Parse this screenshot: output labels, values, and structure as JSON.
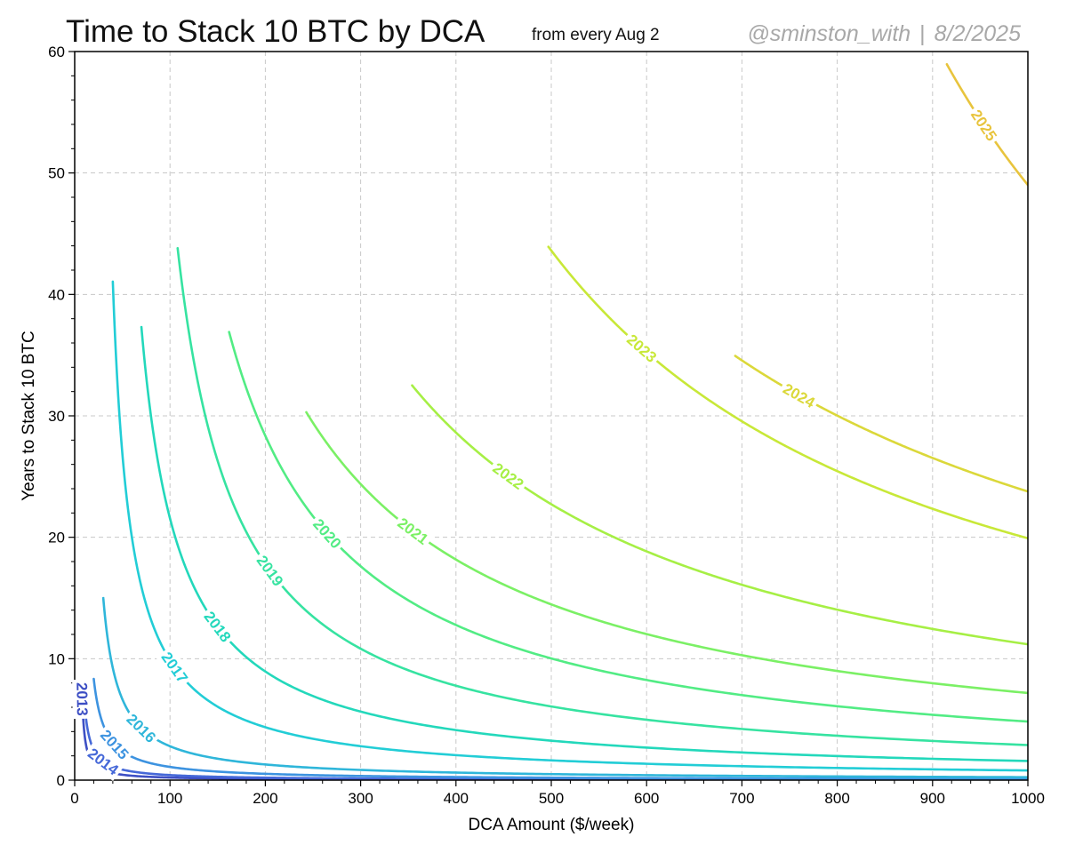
{
  "header": {
    "title": "Time to Stack 10 BTC by DCA",
    "subtitle": "from every Aug 2",
    "handle": "@sminston_with",
    "separator": "|",
    "date": "8/2/2025"
  },
  "colors": {
    "grid": "#c8c8c8",
    "axis": "#000000",
    "credit": "#a8a8a8"
  },
  "chart_data": {
    "type": "line",
    "title": "Time to Stack 10 BTC by DCA",
    "subtitle": "from every Aug 2",
    "xlabel": "DCA Amount ($/week)",
    "ylabel": "Years to Stack 10 BTC",
    "xlim": [
      0,
      1000
    ],
    "ylim": [
      0,
      60
    ],
    "xticks": [
      0,
      100,
      200,
      300,
      400,
      500,
      600,
      700,
      800,
      900,
      1000
    ],
    "yticks": [
      0,
      10,
      20,
      30,
      40,
      50,
      60
    ],
    "grid": true,
    "grid_style": "dashed",
    "legend": "none",
    "curve_form": "years = k / (dca - offset)",
    "series": [
      {
        "name": "2013",
        "k": 20,
        "offset": 5,
        "xstart": 8,
        "color": "#3d4fc4",
        "label_at_x": 8
      },
      {
        "name": "2014",
        "k": 40,
        "offset": 4,
        "xstart": 10,
        "color": "#4568d8",
        "label_at_x": 30
      },
      {
        "name": "2015",
        "k": 100,
        "offset": 8,
        "xstart": 20,
        "color": "#3d93e0",
        "label_at_x": 42
      },
      {
        "name": "2016",
        "k": 240,
        "offset": 14,
        "xstart": 30,
        "color": "#2fb6da",
        "label_at_x": 70
      },
      {
        "name": "2017",
        "k": 780,
        "offset": 21,
        "xstart": 40,
        "color": "#22cdd6",
        "label_at_x": 105
      },
      {
        "name": "2018",
        "k": 1530,
        "offset": 29,
        "xstart": 70,
        "color": "#23d8bb",
        "label_at_x": 150
      },
      {
        "name": "2019",
        "k": 2760,
        "offset": 45,
        "xstart": 108,
        "color": "#36e3a1",
        "label_at_x": 205
      },
      {
        "name": "2020",
        "k": 4650,
        "offset": 36,
        "xstart": 162,
        "color": "#52ec84",
        "label_at_x": 265
      },
      {
        "name": "2021",
        "k": 7120,
        "offset": 8,
        "xstart": 243,
        "color": "#7bf065",
        "label_at_x": 355
      },
      {
        "name": "2022",
        "k": 11020,
        "offset": 15,
        "xstart": 354,
        "color": "#a6ef45",
        "label_at_x": 455
      },
      {
        "name": "2023",
        "k": 18330,
        "offset": 79.7,
        "xstart": 497,
        "color": "#c8e838",
        "label_at_x": 595
      },
      {
        "name": "2024",
        "k": 22830,
        "offset": 39.5,
        "xstart": 693,
        "color": "#dbd83a",
        "label_at_x": 760
      },
      {
        "name": "2025",
        "k": 24700,
        "offset": 496,
        "xstart": 915,
        "color": "#e8c43d",
        "label_at_x": 954
      }
    ]
  }
}
